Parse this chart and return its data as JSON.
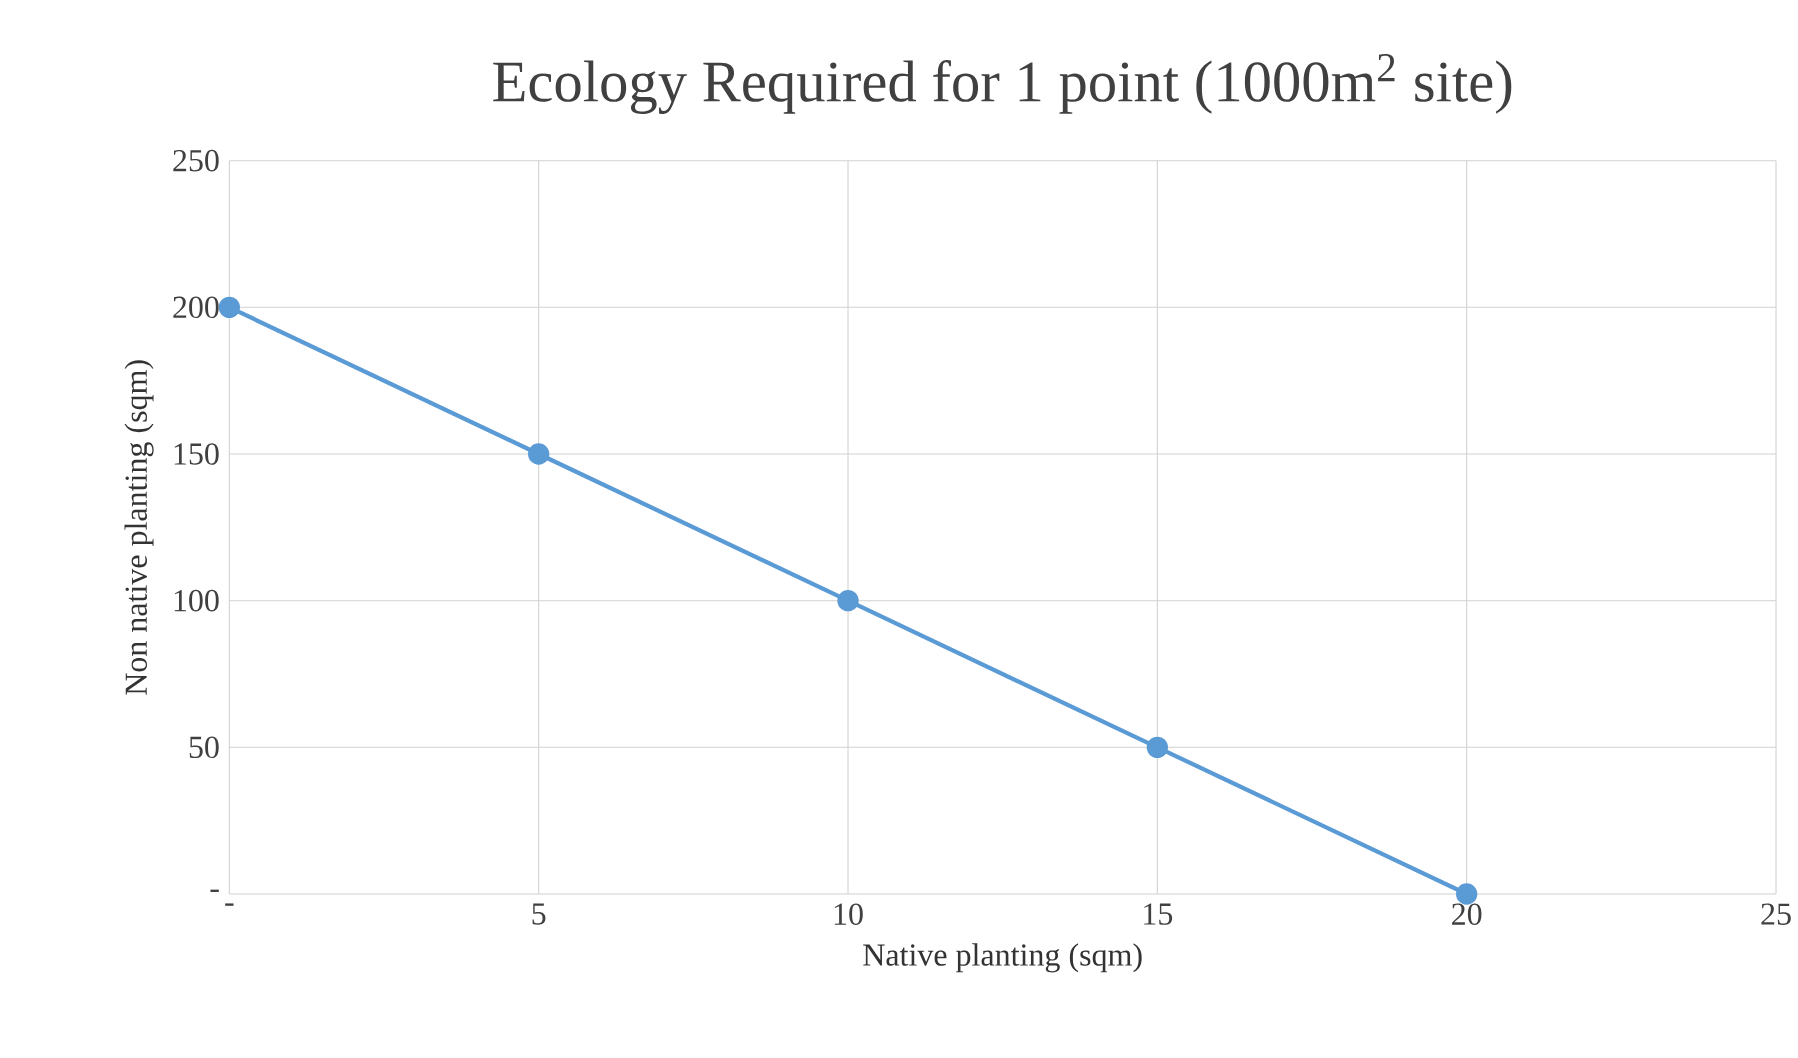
{
  "chart_data": {
    "type": "line",
    "title": "Ecology Required for 1 point (1000m$^{2}$ site)",
    "xlabel": "Native planting (sqm)",
    "ylabel": "Non native planting (sqm)",
    "x": [
      0,
      5,
      10,
      15,
      20
    ],
    "series": [
      {
        "color": "#5b9bd5",
        "values": [
          200,
          150,
          100,
          50,
          0
        ]
      }
    ],
    "xlim": [
      0,
      25
    ],
    "ylim": [
      0,
      250
    ],
    "xticks": [
      {
        "value": 0,
        "label": "-"
      },
      5,
      10,
      15,
      20,
      25
    ],
    "yticks": [
      {
        "value": 0,
        "label": "-"
      },
      50,
      100,
      150,
      200,
      250
    ],
    "grid": true,
    "marker": "circle",
    "line_style": "solid"
  }
}
